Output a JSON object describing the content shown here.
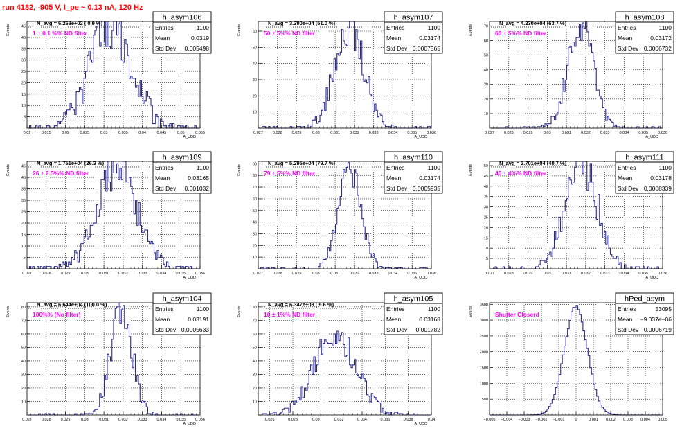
{
  "title": "run 4182,  -905 V, I_pe ~ 0.13 nA, 120 Hz",
  "colors": {
    "histogram_line": "#2b2b8f",
    "filter_label": "#ff00ff",
    "title": "#ff0000",
    "axes": "#000000"
  },
  "chart_data": [
    {
      "type": "histogram",
      "name": "h_asym106",
      "n_avg_text": "N_avg = 6.268e+02 ( 0.9 %)",
      "filter_label": "1 ± 0.1 %% ND filter",
      "stats": [
        [
          "Entries",
          "1100"
        ],
        [
          "Mean",
          "0.0319"
        ],
        [
          "Std Dev",
          "0.005498"
        ]
      ],
      "ylabel": "Events",
      "xlabel": "A_UDD",
      "xlim": [
        0.01,
        0.055
      ],
      "ylim": [
        0,
        47
      ],
      "xticks": [
        "0.01",
        "0.015",
        "0.02",
        "0.025",
        "0.03",
        "0.035",
        "0.04",
        "0.045",
        "0.05",
        "0.055"
      ],
      "xtick_values": [
        0.01,
        0.015,
        0.02,
        0.025,
        0.03,
        0.035,
        0.04,
        0.045,
        0.05,
        0.055
      ],
      "yticks": [
        5,
        10,
        15,
        20,
        25,
        30,
        35,
        40,
        45
      ],
      "mean": 0.0319,
      "sigma": 0.005498,
      "entries": 1100,
      "peak": 45
    },
    {
      "type": "histogram",
      "name": "h_asym107",
      "n_avg_text": "N_avg = 3.390e+04 (51.0 %)",
      "filter_label": "50 ± 5%% ND filter",
      "stats": [
        [
          "Entries",
          "1100"
        ],
        [
          "Mean",
          "0.03174"
        ],
        [
          "Std Dev",
          "0.0007565"
        ]
      ],
      "ylabel": "Events",
      "xlabel": "A_UDD",
      "xlim": [
        0.027,
        0.036
      ],
      "ylim": [
        0,
        66
      ],
      "xticks": [
        "0.027",
        "0.028",
        "0.029",
        "0.03",
        "0.031",
        "0.032",
        "0.033",
        "0.034",
        "0.035",
        "0.036"
      ],
      "xtick_values": [
        0.027,
        0.028,
        0.029,
        0.03,
        0.031,
        0.032,
        0.033,
        0.034,
        0.035,
        0.036
      ],
      "yticks": [
        10,
        20,
        30,
        40,
        50,
        60
      ],
      "mean": 0.03174,
      "sigma": 0.0007565,
      "entries": 1100,
      "peak": 63
    },
    {
      "type": "histogram",
      "name": "h_asym108",
      "n_avg_text": "N_avg = 4.230e+04 (63.7 %)",
      "filter_label": "63 ± 5%% ND filter",
      "stats": [
        [
          "Entries",
          "1100"
        ],
        [
          "Mean",
          "0.03172"
        ],
        [
          "Std Dev",
          "0.0006732"
        ]
      ],
      "ylabel": "Events",
      "xlabel": "A_UDD",
      "xlim": [
        0.027,
        0.036
      ],
      "ylim": [
        0,
        73
      ],
      "xticks": [
        "0.027",
        "0.028",
        "0.029",
        "0.03",
        "0.031",
        "0.032",
        "0.033",
        "0.034",
        "0.035",
        "0.036"
      ],
      "xtick_values": [
        0.027,
        0.028,
        0.029,
        0.03,
        0.031,
        0.032,
        0.033,
        0.034,
        0.035,
        0.036
      ],
      "yticks": [
        10,
        20,
        30,
        40,
        50,
        60,
        70
      ],
      "mean": 0.03172,
      "sigma": 0.0006732,
      "entries": 1100,
      "peak": 70
    },
    {
      "type": "histogram",
      "name": "h_asym109",
      "n_avg_text": "N_avg = 1.751e+04 (26.3 %)",
      "filter_label": "26 ± 2.5%% ND filter",
      "stats": [
        [
          "Entries",
          "1100"
        ],
        [
          "Mean",
          "0.03165"
        ],
        [
          "Std Dev",
          "0.001032"
        ]
      ],
      "ylabel": "Events",
      "xlabel": "A_UDD",
      "xlim": [
        0.027,
        0.036
      ],
      "ylim": [
        0,
        47
      ],
      "xticks": [
        "0.027",
        "0.028",
        "0.029",
        "0.03",
        "0.031",
        "0.032",
        "0.033",
        "0.034",
        "0.035",
        "0.036"
      ],
      "xtick_values": [
        0.027,
        0.028,
        0.029,
        0.03,
        0.031,
        0.032,
        0.033,
        0.034,
        0.035,
        0.036
      ],
      "yticks": [
        5,
        10,
        15,
        20,
        25,
        30,
        35,
        40,
        45
      ],
      "mean": 0.03165,
      "sigma": 0.001032,
      "entries": 1100,
      "peak": 44
    },
    {
      "type": "histogram",
      "name": "h_asym110",
      "n_avg_text": "N_avg = 5.295e+04 (79.7 %)",
      "filter_label": "79 ± 5%% ND filter",
      "stats": [
        [
          "Entries",
          "1100"
        ],
        [
          "Mean",
          "0.03174"
        ],
        [
          "Std Dev",
          "0.0005935"
        ]
      ],
      "ylabel": "Events",
      "xlabel": "A_UDD",
      "xlim": [
        0.027,
        0.036
      ],
      "ylim": [
        0,
        92
      ],
      "xticks": [
        "0.027",
        "0.028",
        "0.029",
        "0.03",
        "0.031",
        "0.032",
        "0.033",
        "0.034",
        "0.035",
        "0.036"
      ],
      "xtick_values": [
        0.027,
        0.028,
        0.029,
        0.03,
        0.031,
        0.032,
        0.033,
        0.034,
        0.035,
        0.036
      ],
      "yticks": [
        10,
        20,
        30,
        40,
        50,
        60,
        70,
        80,
        90
      ],
      "mean": 0.03174,
      "sigma": 0.0005935,
      "entries": 1100,
      "peak": 86
    },
    {
      "type": "histogram",
      "name": "h_asym111",
      "n_avg_text": "N_avg = 2.701e+04 (40.7 %)",
      "filter_label": "40 ± 4%% ND filter",
      "stats": [
        [
          "Entries",
          "1100"
        ],
        [
          "Mean",
          "0.03178"
        ],
        [
          "Std Dev",
          "0.0008339"
        ]
      ],
      "ylabel": "Events",
      "xlabel": "A_UDD",
      "xlim": [
        0.027,
        0.036
      ],
      "ylim": [
        0,
        52
      ],
      "xticks": [
        "0.027",
        "0.028",
        "0.029",
        "0.03",
        "0.031",
        "0.032",
        "0.033",
        "0.034",
        "0.035",
        "0.036"
      ],
      "xtick_values": [
        0.027,
        0.028,
        0.029,
        0.03,
        0.031,
        0.032,
        0.033,
        0.034,
        0.035,
        0.036
      ],
      "yticks": [
        5,
        10,
        15,
        20,
        25,
        30,
        35,
        40,
        45,
        50
      ],
      "mean": 0.03178,
      "sigma": 0.0008339,
      "entries": 1100,
      "peak": 50
    },
    {
      "type": "histogram",
      "name": "h_asym104",
      "n_avg_text": "N_avg = 6.644e+04 (100.0 %)",
      "filter_label": "100%% (No filter)",
      "stats": [
        [
          "Entries",
          "1100"
        ],
        [
          "Mean",
          "0.03191"
        ],
        [
          "Std Dev",
          "0.0005633"
        ]
      ],
      "ylabel": "Events",
      "xlabel": "A_UDD",
      "xlim": [
        0.027,
        0.036
      ],
      "ylim": [
        0,
        83
      ],
      "xticks": [
        "0.027",
        "0.028",
        "0.029",
        "0.03",
        "0.031",
        "0.032",
        "0.033",
        "0.034",
        "0.035",
        "0.036"
      ],
      "xtick_values": [
        0.027,
        0.028,
        0.029,
        0.03,
        0.031,
        0.032,
        0.033,
        0.034,
        0.035,
        0.036
      ],
      "yticks": [
        10,
        20,
        30,
        40,
        50,
        60,
        70,
        80
      ],
      "mean": 0.03191,
      "sigma": 0.0005633,
      "entries": 1100,
      "peak": 77
    },
    {
      "type": "histogram",
      "name": "h_asym105",
      "n_avg_text": "N_avg = 6.347e+03 ( 9.6 %)",
      "filter_label": "10 ± 1%% ND filter",
      "stats": [
        [
          "Entries",
          "1100"
        ],
        [
          "Mean",
          "0.03168"
        ],
        [
          "Std Dev",
          "0.001782"
        ]
      ],
      "ylabel": "Events",
      "xlabel": "A_UDD",
      "xlim": [
        0.025,
        0.04
      ],
      "ylim": [
        0,
        83
      ],
      "xticks": [
        "0.026",
        "0.028",
        "0.03",
        "0.032",
        "0.034",
        "0.036",
        "0.038",
        "0.04"
      ],
      "xtick_values": [
        0.026,
        0.028,
        0.03,
        0.032,
        0.034,
        0.036,
        0.038,
        0.04
      ],
      "yticks": [
        10,
        20,
        30,
        40,
        50,
        60,
        70,
        80
      ],
      "mean": 0.03168,
      "sigma": 0.001782,
      "entries": 1100,
      "peak": 60
    },
    {
      "type": "histogram",
      "name": "hPed_asym",
      "n_avg_text": "",
      "filter_label": "Shutter Closerd",
      "stats": [
        [
          "Entries",
          "53095"
        ],
        [
          "Mean",
          "−9.037e−06"
        ],
        [
          "Std Dev",
          "0.0006719"
        ]
      ],
      "ylabel": "Events",
      "xlabel": "",
      "xlim": [
        -0.005,
        0.005
      ],
      "ylim": [
        0,
        3550
      ],
      "xticks": [
        "−0.005",
        "−0.004",
        "−0.003",
        "−0.002",
        "−0.001",
        "0",
        "0.001",
        "0.002",
        "0.003",
        "0.004",
        "0.005"
      ],
      "xtick_values": [
        -0.005,
        -0.004,
        -0.003,
        -0.002,
        -0.001,
        0,
        0.001,
        0.002,
        0.003,
        0.004,
        0.005
      ],
      "yticks": [
        500,
        1000,
        1500,
        2000,
        2500,
        3000,
        3500
      ],
      "mean": -9.037e-06,
      "sigma": 0.0006719,
      "entries": 53095,
      "peak": 3400
    }
  ]
}
